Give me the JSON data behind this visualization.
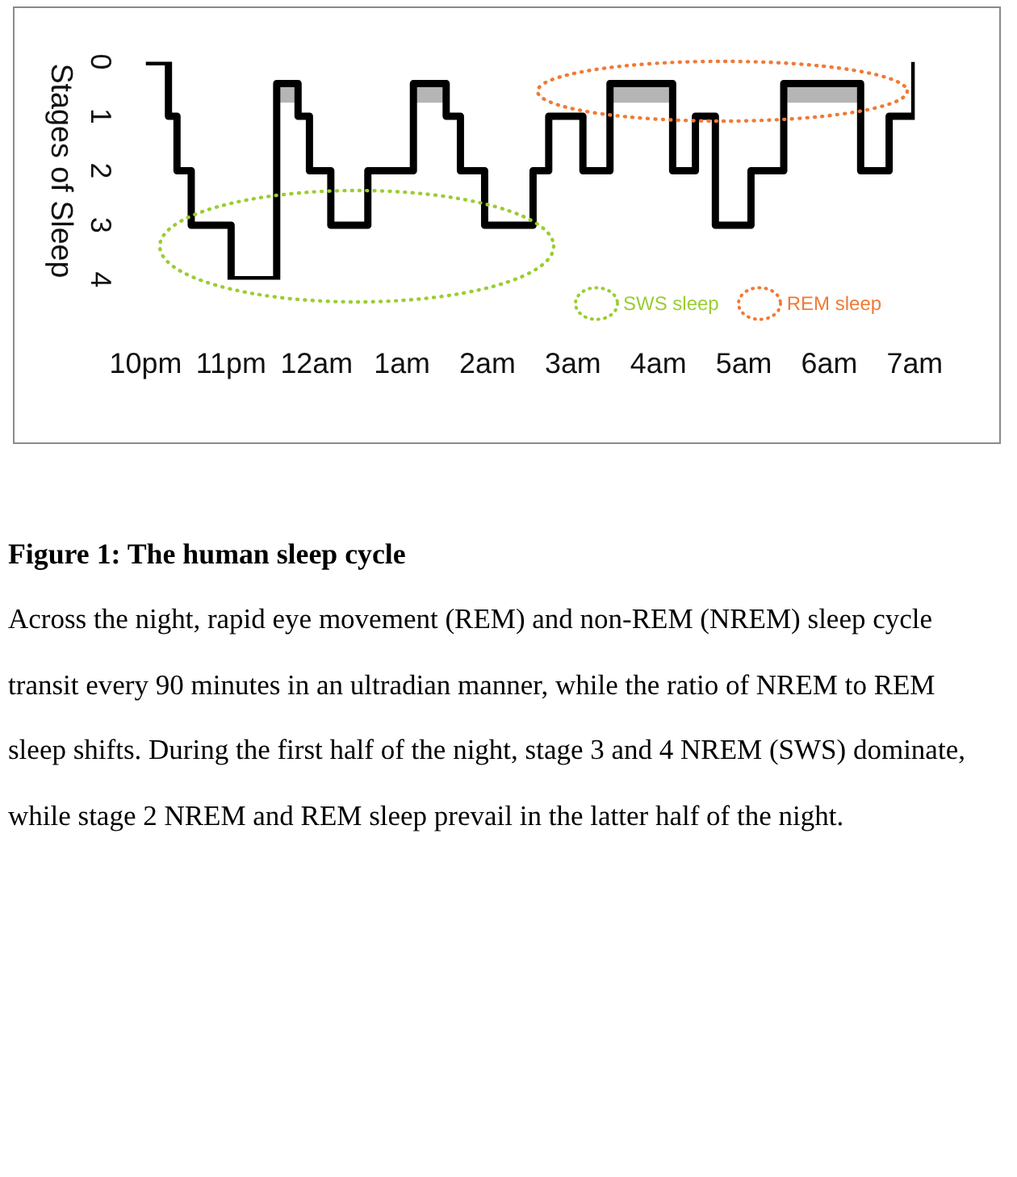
{
  "chart_data": {
    "type": "step",
    "title": "Figure 1: The human sleep cycle",
    "subtitle": "Across the night, rapid eye movement (REM) and non-REM (NREM) sleep cycle transit every 90 minutes in an ultradian manner, while the ratio of NREM to REM sleep shifts. During the first half of the night, stage 3 and 4 NREM (SWS) dominate, while stage 2 NREM and REM sleep prevail in the latter half of the night.",
    "ylabel": "Stages of Sleep",
    "annotations": [
      "SWS sleep",
      "REM sleep"
    ],
    "xlim": [
      "--01-01T22:00",
      "--01-02T07:00"
    ],
    "xticks": [
      {
        "value": "--01-01T22:00",
        "label": "10pm"
      },
      {
        "value": "--01-01T23:00",
        "label": "11pm"
      },
      {
        "value": "--01-02T00:00",
        "label": "12am"
      },
      {
        "value": "--01-02T01:00",
        "label": "1am"
      },
      {
        "value": "--01-02T02:00",
        "label": "2am"
      },
      {
        "value": "--01-02T03:00",
        "label": "3am"
      },
      {
        "value": "--01-02T04:00",
        "label": "4am"
      },
      {
        "value": "--01-02T05:00",
        "label": "5am"
      },
      {
        "value": "--01-02T06:00",
        "label": "6am"
      },
      {
        "value": "--01-02T07:00",
        "label": "7am"
      }
    ],
    "ylim": [
      4,
      0
    ],
    "yticks": [
      0,
      1,
      2,
      3,
      4
    ],
    "marker": "none",
    "series": [
      {
        "color": "#000000",
        "line_style": "solid",
        "x": [
          "--01-01T22:00",
          "--01-01T22:16",
          "--01-01T22:22",
          "--01-01T22:32",
          "--01-01T23:00",
          "--01-01T23:32",
          "--01-01T23:47",
          "--01-01T23:47",
          "--01-01T23:55",
          "--01-02T00:10",
          "--01-02T00:36",
          "--01-02T01:08",
          "--01-02T01:31",
          "--01-02T01:31",
          "--01-02T01:41",
          "--01-02T01:58",
          "--01-02T02:32",
          "--01-02T02:43",
          "--01-02T03:07",
          "--01-02T03:26",
          "--01-02T04:10",
          "--01-02T04:10",
          "--01-02T04:26",
          "--01-02T04:40",
          "--01-02T05:05",
          "--01-02T05:28",
          "--01-02T06:22",
          "--01-02T06:22",
          "--01-02T06:42",
          "--01-02T07:00"
        ],
        "values": [
          0,
          1,
          2,
          3,
          4,
          0.4,
          0.4,
          1,
          2,
          3,
          2,
          0.4,
          0.4,
          1,
          2,
          3,
          2,
          1,
          2,
          0.4,
          0.4,
          2,
          1,
          3,
          2,
          0.4,
          0.4,
          2,
          1,
          0
        ],
        "lower": [
          null,
          null,
          null,
          null,
          null,
          0.4,
          0.4,
          null,
          null,
          null,
          null,
          0.4,
          0.4,
          null,
          null,
          null,
          null,
          null,
          null,
          0.4,
          0.4,
          null,
          null,
          null,
          null,
          0.4,
          0.4,
          null,
          null,
          null
        ],
        "upper": [
          null,
          null,
          null,
          null,
          null,
          0.75,
          0.75,
          null,
          null,
          null,
          null,
          0.75,
          0.75,
          null,
          null,
          null,
          null,
          null,
          null,
          0.75,
          0.75,
          null,
          null,
          null,
          null,
          0.75,
          0.75,
          null,
          null,
          null
        ]
      }
    ]
  }
}
